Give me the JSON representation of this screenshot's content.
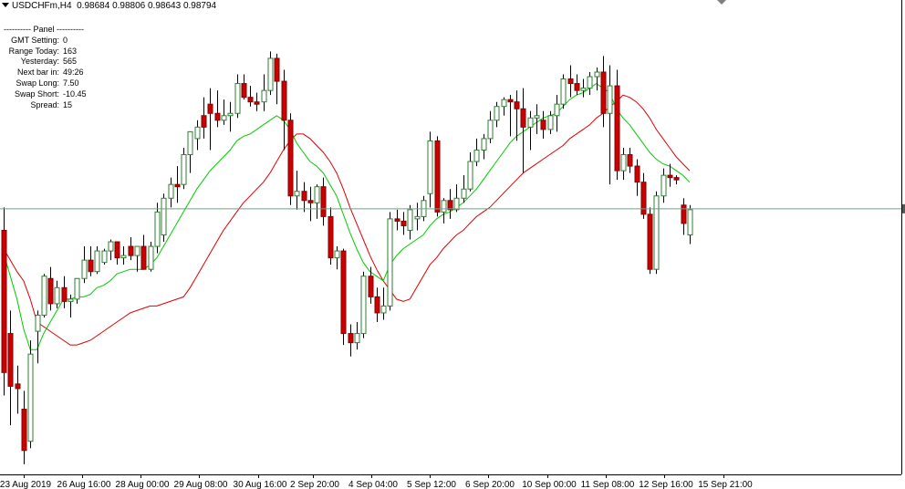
{
  "header": {
    "symbol_line": "USDCHFm,H4",
    "open": "0.98684",
    "high": "0.98806",
    "low": "0.98643",
    "close": "0.98794"
  },
  "panel": {
    "title": "---------- Panel ----------",
    "rows": [
      {
        "label": "GMT Setting:",
        "value": "0"
      },
      {
        "label": "Range Today:",
        "value": "163"
      },
      {
        "label": "Yesterday:",
        "value": "565"
      },
      {
        "label": "Next bar in:",
        "value": "49:26"
      },
      {
        "label": "Swap Long:",
        "value": "7.50"
      },
      {
        "label": "Swap Short:",
        "value": "-10.45"
      },
      {
        "label": "Spread:",
        "value": "15"
      }
    ]
  },
  "colors": {
    "bull_fill": "#ffffff",
    "bull_border": "#2e7d32",
    "bear_fill": "#cc0000",
    "bear_border": "#800000",
    "wick": "#000000",
    "ma_fast": "#00cc00",
    "ma_slow": "#dd0000",
    "price_line": "#7a9a8a",
    "axis": "#000000"
  },
  "chart_data": {
    "type": "candlestick",
    "x_tick_labels": [
      "23 Aug 2019",
      "26 Aug 16:00",
      "28 Aug 00:00",
      "29 Aug 08:00",
      "30 Aug 16:00",
      "2 Sep 20:00",
      "4 Sep 04:00",
      "5 Sep 12:00",
      "6 Sep 20:00",
      "10 Sep 00:00",
      "11 Sep 08:00",
      "12 Sep 16:00",
      "15 Sep 21:00"
    ],
    "current_price": 0.98794,
    "candles": [
      {
        "o": 0.987,
        "h": 0.988,
        "l": 0.9798,
        "c": 0.9808
      },
      {
        "o": 0.9825,
        "h": 0.9835,
        "l": 0.9785,
        "c": 0.9802
      },
      {
        "o": 0.9803,
        "h": 0.9811,
        "l": 0.979,
        "c": 0.9801
      },
      {
        "o": 0.9792,
        "h": 0.98,
        "l": 0.9768,
        "c": 0.9774
      },
      {
        "o": 0.9778,
        "h": 0.9822,
        "l": 0.9775,
        "c": 0.9816
      },
      {
        "o": 0.9826,
        "h": 0.9835,
        "l": 0.9812,
        "c": 0.9833
      },
      {
        "o": 0.9833,
        "h": 0.9851,
        "l": 0.9832,
        "c": 0.985
      },
      {
        "o": 0.9849,
        "h": 0.9854,
        "l": 0.9835,
        "c": 0.9838
      },
      {
        "o": 0.9838,
        "h": 0.9848,
        "l": 0.9836,
        "c": 0.9845
      },
      {
        "o": 0.9845,
        "h": 0.985,
        "l": 0.9836,
        "c": 0.9839
      },
      {
        "o": 0.9839,
        "h": 0.9842,
        "l": 0.9832,
        "c": 0.984
      },
      {
        "o": 0.984,
        "h": 0.9849,
        "l": 0.9838,
        "c": 0.9849
      },
      {
        "o": 0.9849,
        "h": 0.9863,
        "l": 0.9847,
        "c": 0.9857
      },
      {
        "o": 0.9857,
        "h": 0.9863,
        "l": 0.985,
        "c": 0.9852
      },
      {
        "o": 0.9852,
        "h": 0.9863,
        "l": 0.9851,
        "c": 0.9861
      },
      {
        "o": 0.9856,
        "h": 0.9862,
        "l": 0.9855,
        "c": 0.9861
      },
      {
        "o": 0.9861,
        "h": 0.9866,
        "l": 0.9857,
        "c": 0.9865
      },
      {
        "o": 0.9865,
        "h": 0.9865,
        "l": 0.9855,
        "c": 0.9858
      },
      {
        "o": 0.9858,
        "h": 0.9863,
        "l": 0.9855,
        "c": 0.9859
      },
      {
        "o": 0.9863,
        "h": 0.9867,
        "l": 0.9857,
        "c": 0.9859
      },
      {
        "o": 0.9859,
        "h": 0.9863,
        "l": 0.9852,
        "c": 0.9863
      },
      {
        "o": 0.9863,
        "h": 0.9868,
        "l": 0.9853,
        "c": 0.9853
      },
      {
        "o": 0.9853,
        "h": 0.9865,
        "l": 0.9852,
        "c": 0.9863
      },
      {
        "o": 0.9863,
        "h": 0.9882,
        "l": 0.986,
        "c": 0.9878
      },
      {
        "o": 0.9868,
        "h": 0.9886,
        "l": 0.9865,
        "c": 0.9884
      },
      {
        "o": 0.9884,
        "h": 0.9893,
        "l": 0.988,
        "c": 0.989
      },
      {
        "o": 0.989,
        "h": 0.9898,
        "l": 0.9882,
        "c": 0.9889
      },
      {
        "o": 0.989,
        "h": 0.9906,
        "l": 0.9888,
        "c": 0.9903
      },
      {
        "o": 0.9903,
        "h": 0.9913,
        "l": 0.9895,
        "c": 0.9913
      },
      {
        "o": 0.991,
        "h": 0.9918,
        "l": 0.9905,
        "c": 0.9915
      },
      {
        "o": 0.992,
        "h": 0.9928,
        "l": 0.991,
        "c": 0.9915
      },
      {
        "o": 0.9925,
        "h": 0.9932,
        "l": 0.9905,
        "c": 0.9921
      },
      {
        "o": 0.9921,
        "h": 0.9931,
        "l": 0.9915,
        "c": 0.9918
      },
      {
        "o": 0.9918,
        "h": 0.9927,
        "l": 0.9916,
        "c": 0.992
      },
      {
        "o": 0.992,
        "h": 0.9926,
        "l": 0.9913,
        "c": 0.9921
      },
      {
        "o": 0.9921,
        "h": 0.9938,
        "l": 0.9919,
        "c": 0.9934
      },
      {
        "o": 0.9934,
        "h": 0.9938,
        "l": 0.9927,
        "c": 0.9928
      },
      {
        "o": 0.9928,
        "h": 0.9933,
        "l": 0.9924,
        "c": 0.9926
      },
      {
        "o": 0.9926,
        "h": 0.993,
        "l": 0.9922,
        "c": 0.9925
      },
      {
        "o": 0.9926,
        "h": 0.9938,
        "l": 0.9922,
        "c": 0.9931
      },
      {
        "o": 0.9931,
        "h": 0.9948,
        "l": 0.9929,
        "c": 0.9945
      },
      {
        "o": 0.9945,
        "h": 0.9947,
        "l": 0.9925,
        "c": 0.9935
      },
      {
        "o": 0.9935,
        "h": 0.994,
        "l": 0.9905,
        "c": 0.9918
      },
      {
        "o": 0.9918,
        "h": 0.9921,
        "l": 0.9881,
        "c": 0.9885
      },
      {
        "o": 0.9885,
        "h": 0.9896,
        "l": 0.9879,
        "c": 0.9887
      },
      {
        "o": 0.9887,
        "h": 0.9891,
        "l": 0.9878,
        "c": 0.9883
      },
      {
        "o": 0.9883,
        "h": 0.9889,
        "l": 0.9874,
        "c": 0.9882
      },
      {
        "o": 0.9882,
        "h": 0.989,
        "l": 0.9875,
        "c": 0.9889
      },
      {
        "o": 0.9889,
        "h": 0.9893,
        "l": 0.9872,
        "c": 0.9876
      },
      {
        "o": 0.9876,
        "h": 0.988,
        "l": 0.9855,
        "c": 0.9858
      },
      {
        "o": 0.9858,
        "h": 0.9863,
        "l": 0.9853,
        "c": 0.9861
      },
      {
        "o": 0.9861,
        "h": 0.9862,
        "l": 0.982,
        "c": 0.9825
      },
      {
        "o": 0.9825,
        "h": 0.9829,
        "l": 0.9815,
        "c": 0.9821
      },
      {
        "o": 0.9821,
        "h": 0.983,
        "l": 0.9818,
        "c": 0.9825
      },
      {
        "o": 0.9825,
        "h": 0.9852,
        "l": 0.9823,
        "c": 0.985
      },
      {
        "o": 0.985,
        "h": 0.9854,
        "l": 0.9838,
        "c": 0.9841
      },
      {
        "o": 0.9841,
        "h": 0.9845,
        "l": 0.983,
        "c": 0.9834
      },
      {
        "o": 0.9834,
        "h": 0.9845,
        "l": 0.9831,
        "c": 0.9837
      },
      {
        "o": 0.9837,
        "h": 0.9878,
        "l": 0.9835,
        "c": 0.9875
      },
      {
        "o": 0.9875,
        "h": 0.9879,
        "l": 0.987,
        "c": 0.9874
      },
      {
        "o": 0.9874,
        "h": 0.9878,
        "l": 0.9868,
        "c": 0.9872
      },
      {
        "o": 0.987,
        "h": 0.9881,
        "l": 0.9866,
        "c": 0.9879
      },
      {
        "o": 0.9875,
        "h": 0.9882,
        "l": 0.987,
        "c": 0.9876
      },
      {
        "o": 0.9876,
        "h": 0.9885,
        "l": 0.9874,
        "c": 0.9883
      },
      {
        "o": 0.9886,
        "h": 0.9913,
        "l": 0.988,
        "c": 0.9909
      },
      {
        "o": 0.9909,
        "h": 0.9911,
        "l": 0.9876,
        "c": 0.9878
      },
      {
        "o": 0.9878,
        "h": 0.9884,
        "l": 0.9873,
        "c": 0.9883
      },
      {
        "o": 0.9883,
        "h": 0.9888,
        "l": 0.9875,
        "c": 0.9879
      },
      {
        "o": 0.9879,
        "h": 0.989,
        "l": 0.9878,
        "c": 0.9884
      },
      {
        "o": 0.9884,
        "h": 0.9894,
        "l": 0.9882,
        "c": 0.9888
      },
      {
        "o": 0.9888,
        "h": 0.9904,
        "l": 0.9887,
        "c": 0.99
      },
      {
        "o": 0.99,
        "h": 0.991,
        "l": 0.9898,
        "c": 0.9905
      },
      {
        "o": 0.9905,
        "h": 0.9912,
        "l": 0.9901,
        "c": 0.991
      },
      {
        "o": 0.991,
        "h": 0.9922,
        "l": 0.9908,
        "c": 0.9918
      },
      {
        "o": 0.9918,
        "h": 0.9926,
        "l": 0.9915,
        "c": 0.9924
      },
      {
        "o": 0.9924,
        "h": 0.9928,
        "l": 0.992,
        "c": 0.9927
      },
      {
        "o": 0.9927,
        "h": 0.9929,
        "l": 0.9911,
        "c": 0.9926
      },
      {
        "o": 0.9926,
        "h": 0.9931,
        "l": 0.9909,
        "c": 0.9923
      },
      {
        "o": 0.9923,
        "h": 0.9932,
        "l": 0.9895,
        "c": 0.9915
      },
      {
        "o": 0.9915,
        "h": 0.9922,
        "l": 0.9905,
        "c": 0.9919
      },
      {
        "o": 0.9919,
        "h": 0.9925,
        "l": 0.9912,
        "c": 0.992
      },
      {
        "o": 0.9918,
        "h": 0.9922,
        "l": 0.991,
        "c": 0.9914
      },
      {
        "o": 0.9914,
        "h": 0.9922,
        "l": 0.9912,
        "c": 0.992
      },
      {
        "o": 0.992,
        "h": 0.9929,
        "l": 0.9913,
        "c": 0.9925
      },
      {
        "o": 0.9925,
        "h": 0.9938,
        "l": 0.9923,
        "c": 0.9936
      },
      {
        "o": 0.9936,
        "h": 0.9942,
        "l": 0.9928,
        "c": 0.9934
      },
      {
        "o": 0.9934,
        "h": 0.9938,
        "l": 0.9929,
        "c": 0.9931
      },
      {
        "o": 0.9931,
        "h": 0.9936,
        "l": 0.9928,
        "c": 0.9932
      },
      {
        "o": 0.9932,
        "h": 0.9939,
        "l": 0.9929,
        "c": 0.9937
      },
      {
        "o": 0.9937,
        "h": 0.9941,
        "l": 0.9931,
        "c": 0.9939
      },
      {
        "o": 0.9939,
        "h": 0.9946,
        "l": 0.9915,
        "c": 0.9921
      },
      {
        "o": 0.9921,
        "h": 0.9942,
        "l": 0.989,
        "c": 0.9933
      },
      {
        "o": 0.9933,
        "h": 0.994,
        "l": 0.9892,
        "c": 0.9896
      },
      {
        "o": 0.9896,
        "h": 0.9906,
        "l": 0.9892,
        "c": 0.9903
      },
      {
        "o": 0.9903,
        "h": 0.9906,
        "l": 0.9895,
        "c": 0.9898
      },
      {
        "o": 0.9898,
        "h": 0.9901,
        "l": 0.9885,
        "c": 0.9891
      },
      {
        "o": 0.9891,
        "h": 0.9895,
        "l": 0.9875,
        "c": 0.9877
      },
      {
        "o": 0.9877,
        "h": 0.988,
        "l": 0.9851,
        "c": 0.9853
      },
      {
        "o": 0.9853,
        "h": 0.9887,
        "l": 0.9851,
        "c": 0.9885
      },
      {
        "o": 0.9885,
        "h": 0.9897,
        "l": 0.9882,
        "c": 0.9894
      },
      {
        "o": 0.9894,
        "h": 0.9899,
        "l": 0.9889,
        "c": 0.9893
      },
      {
        "o": 0.9893,
        "h": 0.9894,
        "l": 0.989,
        "c": 0.9892
      },
      {
        "o": 0.9881,
        "h": 0.9884,
        "l": 0.9868,
        "c": 0.9873
      },
      {
        "o": 0.9868,
        "h": 0.9881,
        "l": 0.9864,
        "c": 0.9879
      }
    ],
    "ma_fast": [
      0.986,
      0.985,
      0.984,
      0.9827,
      0.9818,
      0.9818,
      0.9825,
      0.983,
      0.9835,
      0.984,
      0.984,
      0.9841,
      0.9841,
      0.9842,
      0.9845,
      0.9846,
      0.9848,
      0.9851,
      0.9852,
      0.9853,
      0.9853,
      0.9853,
      0.9855,
      0.9858,
      0.9863,
      0.9868,
      0.9873,
      0.9878,
      0.9883,
      0.9888,
      0.9892,
      0.9896,
      0.9899,
      0.9902,
      0.9905,
      0.9909,
      0.9911,
      0.9912,
      0.9914,
      0.9916,
      0.9918,
      0.992,
      0.9918,
      0.9914,
      0.9908,
      0.9904,
      0.99,
      0.9898,
      0.9895,
      0.989,
      0.9885,
      0.9877,
      0.9869,
      0.9862,
      0.9856,
      0.9852,
      0.985,
      0.9848,
      0.9855,
      0.9859,
      0.9862,
      0.9864,
      0.9866,
      0.9868,
      0.9872,
      0.9875,
      0.9877,
      0.9878,
      0.988,
      0.9882,
      0.9885,
      0.9888,
      0.9892,
      0.9896,
      0.99,
      0.9904,
      0.9908,
      0.9911,
      0.9913,
      0.9915,
      0.9917,
      0.9919,
      0.992,
      0.9921,
      0.9924,
      0.9927,
      0.9929,
      0.993,
      0.9932,
      0.9934,
      0.9932,
      0.993,
      0.9923,
      0.9919,
      0.9916,
      0.9912,
      0.9908,
      0.9904,
      0.9901,
      0.9899,
      0.9898,
      0.9896,
      0.9894,
      0.9891
    ],
    "ma_slow": [
      0.9862,
      0.9857,
      0.9852,
      0.9848,
      0.984,
      0.983,
      0.9828,
      0.9826,
      0.9824,
      0.9822,
      0.982,
      0.982,
      0.9821,
      0.9822,
      0.9824,
      0.9826,
      0.9828,
      0.983,
      0.9832,
      0.9834,
      0.9835,
      0.9836,
      0.9837,
      0.9837,
      0.9838,
      0.9839,
      0.984,
      0.9841,
      0.9845,
      0.985,
      0.9855,
      0.986,
      0.9865,
      0.987,
      0.9874,
      0.9878,
      0.9882,
      0.9885,
      0.9888,
      0.9891,
      0.9895,
      0.99,
      0.9905,
      0.9909,
      0.9912,
      0.9912,
      0.991,
      0.9907,
      0.9904,
      0.99,
      0.9895,
      0.9888,
      0.988,
      0.9873,
      0.9866,
      0.9859,
      0.9853,
      0.9848,
      0.9844,
      0.984,
      0.9839,
      0.984,
      0.9845,
      0.985,
      0.9855,
      0.9858,
      0.9862,
      0.9865,
      0.9868,
      0.987,
      0.9873,
      0.9876,
      0.9878,
      0.988,
      0.9883,
      0.9886,
      0.9889,
      0.9892,
      0.9895,
      0.9897,
      0.9899,
      0.9901,
      0.9903,
      0.9905,
      0.9907,
      0.991,
      0.9912,
      0.9914,
      0.9916,
      0.9919,
      0.9921,
      0.9924,
      0.9926,
      0.9929,
      0.9928,
      0.9926,
      0.9923,
      0.9919,
      0.9914,
      0.991,
      0.9906,
      0.9902,
      0.9899,
      0.9896
    ]
  }
}
